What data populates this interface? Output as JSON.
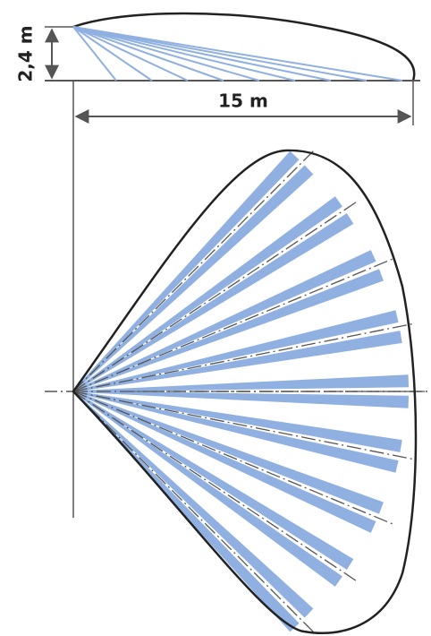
{
  "dimensions": {
    "height": "2,4 m",
    "range": "15 m"
  }
}
